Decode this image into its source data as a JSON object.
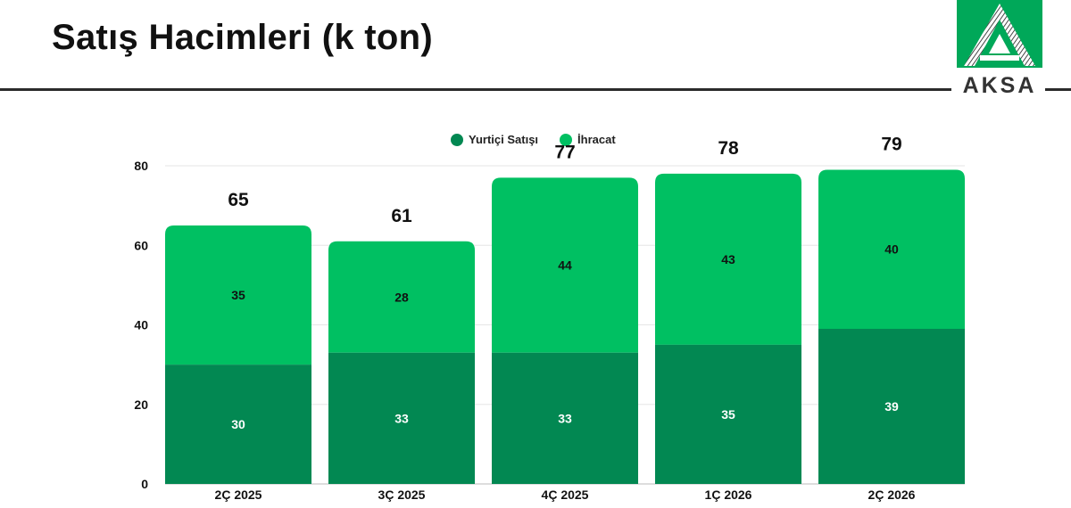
{
  "page": {
    "title": "Satış Hacimleri (k ton)"
  },
  "logo": {
    "text": "AKSA"
  },
  "colors": {
    "domestic": "#028852",
    "export": "#00C062",
    "grid": "#e6e6e6",
    "text": "#111111"
  },
  "chart_data": {
    "type": "bar",
    "stacked": true,
    "title": "",
    "xlabel": "",
    "ylabel": "",
    "categories": [
      "2Ç 2025",
      "3Ç 2025",
      "4Ç 2025",
      "1Ç 2026",
      "2Ç 2026"
    ],
    "series": [
      {
        "name": "Yurtiçi Satışı",
        "values": [
          30,
          33,
          33,
          35,
          39
        ]
      },
      {
        "name": "İhracat",
        "values": [
          35,
          28,
          44,
          43,
          40
        ]
      }
    ],
    "totals": [
      65,
      61,
      77,
      78,
      79
    ],
    "ylim": [
      0,
      80
    ],
    "yticks": [
      0,
      20,
      40,
      60,
      80
    ],
    "grid": true,
    "legend": "top-center"
  }
}
